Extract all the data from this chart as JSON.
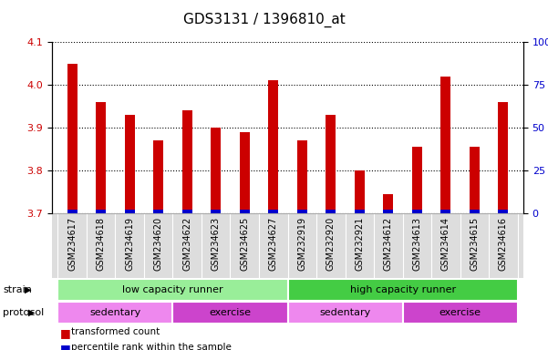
{
  "title": "GDS3131 / 1396810_at",
  "samples": [
    "GSM234617",
    "GSM234618",
    "GSM234619",
    "GSM234620",
    "GSM234622",
    "GSM234623",
    "GSM234625",
    "GSM234627",
    "GSM232919",
    "GSM232920",
    "GSM232921",
    "GSM234612",
    "GSM234613",
    "GSM234614",
    "GSM234615",
    "GSM234616"
  ],
  "transformed_count": [
    4.05,
    3.96,
    3.93,
    3.87,
    3.94,
    3.9,
    3.89,
    4.01,
    3.87,
    3.93,
    3.8,
    3.745,
    3.855,
    4.02,
    3.855,
    3.96
  ],
  "percentile_rank": [
    2,
    2,
    2,
    2,
    2,
    2,
    2,
    2,
    2,
    2,
    2,
    2,
    2,
    2,
    2,
    2
  ],
  "ylim_left": [
    3.7,
    4.1
  ],
  "ylim_right": [
    0,
    100
  ],
  "yticks_left": [
    3.7,
    3.8,
    3.9,
    4.0,
    4.1
  ],
  "yticks_right": [
    0,
    25,
    50,
    75,
    100
  ],
  "bar_color_red": "#cc0000",
  "bar_color_blue": "#0000cc",
  "strain_groups": [
    {
      "label": "low capacity runner",
      "start": 0,
      "end": 8,
      "color": "#99ee99"
    },
    {
      "label": "high capacity runner",
      "start": 8,
      "end": 16,
      "color": "#44cc44"
    }
  ],
  "protocol_groups": [
    {
      "label": "sedentary",
      "start": 0,
      "end": 4,
      "color": "#ee88ee"
    },
    {
      "label": "exercise",
      "start": 4,
      "end": 8,
      "color": "#cc44cc"
    },
    {
      "label": "sedentary",
      "start": 8,
      "end": 12,
      "color": "#ee88ee"
    },
    {
      "label": "exercise",
      "start": 12,
      "end": 16,
      "color": "#cc44cc"
    }
  ],
  "strain_label": "strain",
  "protocol_label": "protocol",
  "legend_red_label": "transformed count",
  "legend_blue_label": "percentile rank within the sample",
  "xlabel_bg": "#dddddd",
  "grid_color": "#000000",
  "title_fontsize": 11,
  "tick_fontsize": 8,
  "label_fontsize": 7,
  "bar_width": 0.35
}
